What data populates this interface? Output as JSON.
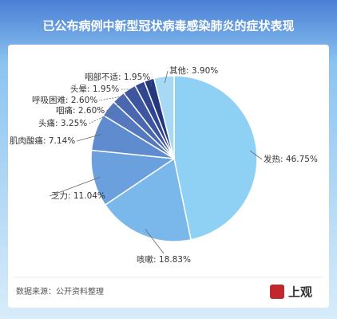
{
  "chart_data": {
    "type": "pie",
    "title": "已公布病例中新型冠状病毒感染肺炎的症状表现",
    "values": [
      46.75,
      18.83,
      11.04,
      7.14,
      3.25,
      2.6,
      2.6,
      1.95,
      1.95,
      3.9
    ],
    "value_labels": [
      "发热: 46.75%",
      "咳嗽: 18.83%",
      "乏力: 11.04%",
      "肌肉酸痛: 7.14%",
      "头痛: 3.25%",
      "咽痛: 2.60%",
      "呼吸困难: 2.60%",
      "头晕: 1.95%",
      "咽部不适: 1.95%",
      "其他: 3.90%"
    ],
    "colors": [
      "#8fd0f5",
      "#7ab8ec",
      "#6aa0dd",
      "#5f8ccf",
      "#5479bf",
      "#4a67b0",
      "#3e56a1",
      "#304692",
      "#25387f",
      "#a8d9f4"
    ],
    "source": "数据来源：公开资料整理",
    "logo": "上观"
  }
}
